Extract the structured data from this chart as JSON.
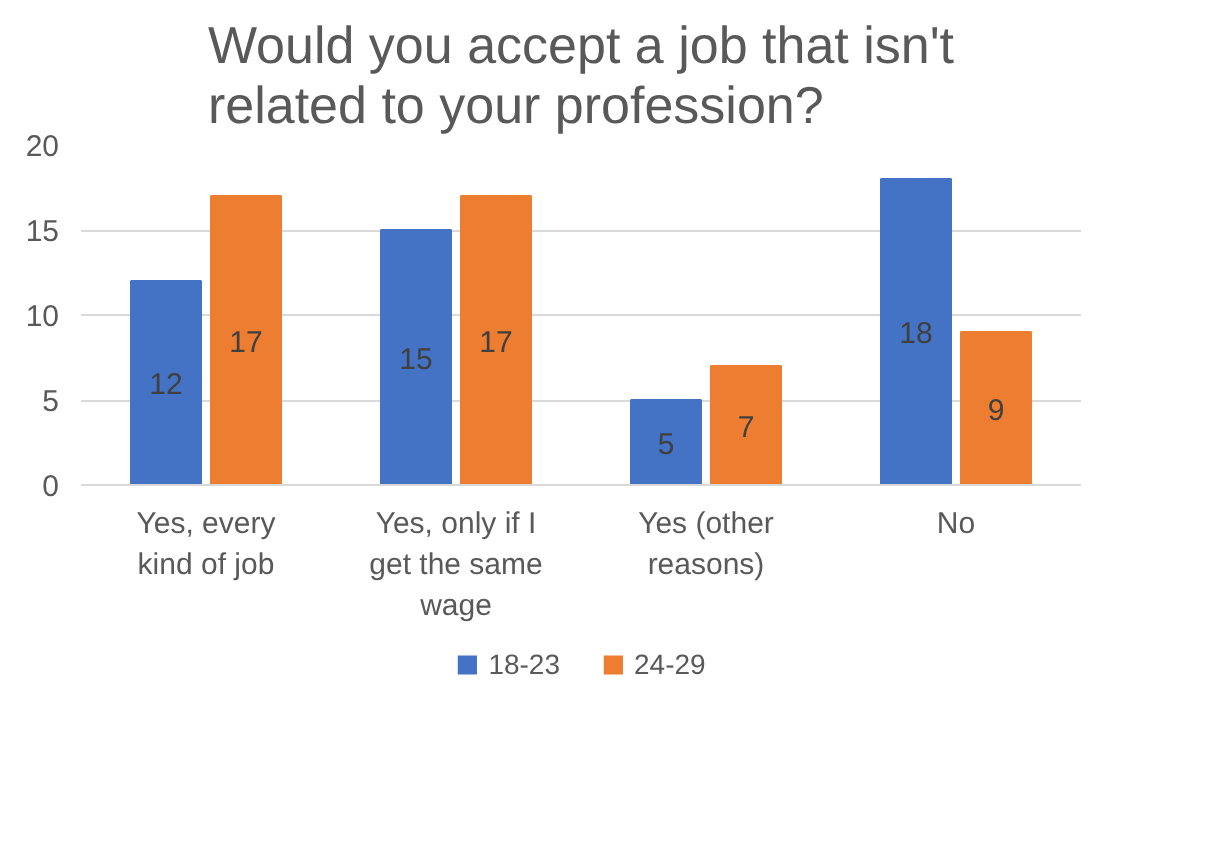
{
  "chart_data": {
    "type": "bar",
    "title": "Would you accept a job that isn't related to your profession?",
    "categories": [
      "Yes, every kind of job",
      "Yes, only if I get the same wage",
      "Yes (other reasons)",
      "No"
    ],
    "series": [
      {
        "name": "18-23",
        "color": "#4472c4",
        "values": [
          12,
          15,
          5,
          18
        ]
      },
      {
        "name": "24-29",
        "color": "#ed7d31",
        "values": [
          17,
          17,
          7,
          9
        ]
      }
    ],
    "ylim": [
      0,
      20
    ],
    "yticks": [
      0,
      5,
      10,
      15,
      20
    ],
    "grid": "y",
    "legend": "bottom",
    "data_labels": true
  }
}
